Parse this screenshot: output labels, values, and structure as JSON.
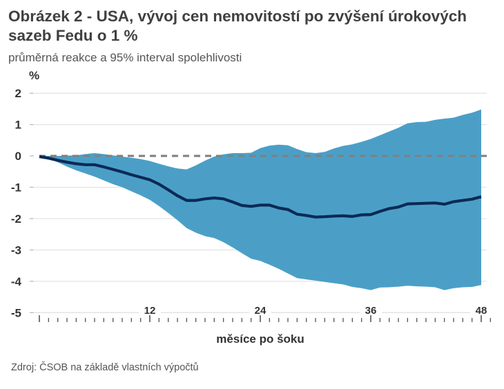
{
  "title": "Obrázek 2 - USA, vývoj cen nemovitostí po zvýšení úrokových sazeb Fedu o 1 %",
  "subtitle": "průměrná reakce a 95% interval spolehlivosti",
  "source": "Zdroj: ČSOB na základě vlastních výpočtů",
  "colors": {
    "band": "#4b9fc7",
    "mean": "#0b2a55",
    "zero_line": "#808080",
    "grid": "#e4e4e4"
  },
  "chart_data": {
    "type": "area",
    "ylabel": "%",
    "xlabel": "měsíce po šoku",
    "xlim": [
      0,
      48
    ],
    "ylim": [
      -5,
      2
    ],
    "yticks": [
      "2",
      "1",
      "0",
      "-1",
      "-2",
      "-3",
      "-4",
      "-5"
    ],
    "xticks": [
      "12",
      "24",
      "36",
      "48"
    ],
    "grid": true,
    "x": [
      0,
      1,
      2,
      3,
      4,
      5,
      6,
      7,
      8,
      9,
      10,
      11,
      12,
      13,
      14,
      15,
      16,
      17,
      18,
      19,
      20,
      21,
      22,
      23,
      24,
      25,
      26,
      27,
      28,
      29,
      30,
      31,
      32,
      33,
      34,
      35,
      36,
      37,
      38,
      39,
      40,
      41,
      42,
      43,
      44,
      45,
      46,
      47,
      48
    ],
    "series": [
      {
        "role": "mean",
        "values": [
          -0.02,
          -0.07,
          -0.14,
          -0.2,
          -0.25,
          -0.28,
          -0.28,
          -0.35,
          -0.43,
          -0.51,
          -0.6,
          -0.68,
          -0.76,
          -0.9,
          -1.08,
          -1.27,
          -1.42,
          -1.42,
          -1.37,
          -1.34,
          -1.37,
          -1.47,
          -1.58,
          -1.61,
          -1.57,
          -1.57,
          -1.66,
          -1.71,
          -1.86,
          -1.9,
          -1.95,
          -1.94,
          -1.92,
          -1.91,
          -1.93,
          -1.88,
          -1.87,
          -1.77,
          -1.68,
          -1.63,
          -1.53,
          -1.52,
          -1.51,
          -1.5,
          -1.54,
          -1.46,
          -1.42,
          -1.38,
          -1.3
        ]
      },
      {
        "role": "upper_95",
        "values": [
          0,
          0,
          0,
          0.01,
          0.02,
          0.06,
          0.09,
          0.06,
          0.02,
          -0.02,
          -0.06,
          -0.1,
          -0.16,
          -0.25,
          -0.33,
          -0.4,
          -0.43,
          -0.3,
          -0.15,
          -0.02,
          0.05,
          0.09,
          0.09,
          0.1,
          0.25,
          0.33,
          0.36,
          0.34,
          0.22,
          0.12,
          0.09,
          0.13,
          0.24,
          0.32,
          0.37,
          0.45,
          0.54,
          0.66,
          0.78,
          0.9,
          1.04,
          1.08,
          1.09,
          1.15,
          1.19,
          1.22,
          1.31,
          1.38,
          1.48
        ]
      },
      {
        "role": "lower_95",
        "values": [
          0,
          -0.08,
          -0.2,
          -0.34,
          -0.46,
          -0.56,
          -0.66,
          -0.78,
          -0.9,
          -1.0,
          -1.13,
          -1.26,
          -1.4,
          -1.6,
          -1.82,
          -2.05,
          -2.3,
          -2.45,
          -2.56,
          -2.62,
          -2.75,
          -2.92,
          -3.1,
          -3.28,
          -3.35,
          -3.47,
          -3.6,
          -3.75,
          -3.9,
          -3.94,
          -3.98,
          -4.02,
          -4.06,
          -4.1,
          -4.18,
          -4.22,
          -4.28,
          -4.2,
          -4.19,
          -4.17,
          -4.14,
          -4.16,
          -4.17,
          -4.19,
          -4.28,
          -4.22,
          -4.19,
          -4.18,
          -4.12
        ]
      }
    ]
  }
}
